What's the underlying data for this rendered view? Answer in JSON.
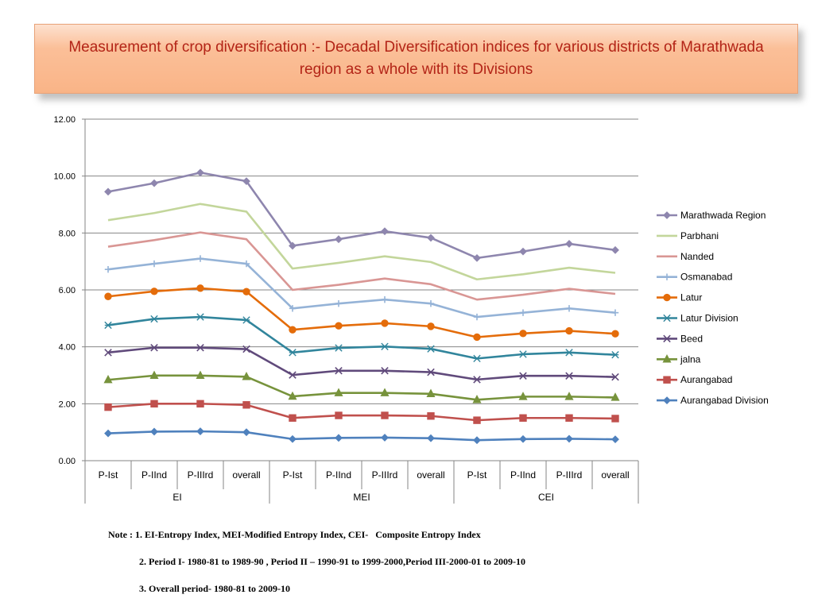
{
  "title": "Measurement of crop diversification :- Decadal Diversification indices for various districts of Marathwada region as a whole with its Divisions",
  "notes": [
    "Note : 1. EI-Entropy Index, MEI-Modified Entropy Index, CEI-   Composite Entropy Index",
    "2. Period I- 1980-81 to 1989-90 , Period II – 1990-91 to 1999-2000,Period III-2000-01 to 2009-10",
    "3. Overall period- 1980-81 to 2009-10"
  ],
  "chart_data": {
    "type": "line",
    "title": "",
    "xlabel": "",
    "ylabel": "",
    "ylim": [
      0,
      12
    ],
    "ytick_labels": [
      "0.00",
      "2.00",
      "4.00",
      "6.00",
      "8.00",
      "10.00",
      "12.00"
    ],
    "yticks": [
      0,
      2,
      4,
      6,
      8,
      10,
      12
    ],
    "grid": true,
    "legend_position": "right",
    "categories": [
      "P-Ist",
      "P-IInd",
      "P-IIIrd",
      "overall",
      "P-Ist",
      "P-IInd",
      "P-IIIrd",
      "overall",
      "P-Ist",
      "P-IInd",
      "P-IIIrd",
      "overall"
    ],
    "groups": [
      "EI",
      "MEI",
      "CEI"
    ],
    "series": [
      {
        "name": "Marathwada Region",
        "color": "#8e86ae",
        "marker": "diamond",
        "values": [
          9.45,
          9.75,
          10.12,
          9.82,
          7.55,
          7.78,
          8.06,
          7.83,
          7.12,
          7.35,
          7.62,
          7.4
        ]
      },
      {
        "name": "Parbhani",
        "color": "#c3d69b",
        "marker": "none",
        "values": [
          8.45,
          8.7,
          9.02,
          8.75,
          6.75,
          6.95,
          7.18,
          6.98,
          6.37,
          6.55,
          6.78,
          6.6
        ]
      },
      {
        "name": "Nanded",
        "color": "#d99694",
        "marker": "none",
        "values": [
          7.52,
          7.75,
          8.02,
          7.78,
          6.0,
          6.18,
          6.4,
          6.2,
          5.66,
          5.83,
          6.04,
          5.86
        ]
      },
      {
        "name": "Osmanabad",
        "color": "#95b3d7",
        "marker": "plus",
        "values": [
          6.72,
          6.92,
          7.1,
          6.92,
          5.35,
          5.52,
          5.66,
          5.52,
          5.05,
          5.2,
          5.35,
          5.2
        ]
      },
      {
        "name": "Latur",
        "color": "#e46c0a",
        "marker": "circle",
        "values": [
          5.77,
          5.95,
          6.06,
          5.94,
          4.6,
          4.74,
          4.83,
          4.72,
          4.34,
          4.47,
          4.56,
          4.46
        ]
      },
      {
        "name": "Latur Division",
        "color": "#31859c",
        "marker": "star",
        "values": [
          4.76,
          4.98,
          5.05,
          4.94,
          3.8,
          3.96,
          4.01,
          3.93,
          3.59,
          3.74,
          3.8,
          3.72
        ]
      },
      {
        "name": "Beed",
        "color": "#604a7b",
        "marker": "x",
        "values": [
          3.8,
          3.97,
          3.97,
          3.92,
          3.01,
          3.16,
          3.16,
          3.11,
          2.85,
          2.98,
          2.98,
          2.94
        ]
      },
      {
        "name": "jalna",
        "color": "#77933c",
        "marker": "triangle",
        "values": [
          2.84,
          2.99,
          2.99,
          2.95,
          2.26,
          2.38,
          2.38,
          2.35,
          2.14,
          2.25,
          2.25,
          2.22
        ]
      },
      {
        "name": "Aurangabad",
        "color": "#c0504d",
        "marker": "square",
        "values": [
          1.88,
          2.0,
          2.0,
          1.96,
          1.5,
          1.59,
          1.59,
          1.57,
          1.42,
          1.5,
          1.5,
          1.48
        ]
      },
      {
        "name": "Aurangabad Division",
        "color": "#4f81bd",
        "marker": "diamond",
        "values": [
          0.96,
          1.02,
          1.03,
          1.0,
          0.76,
          0.8,
          0.81,
          0.79,
          0.72,
          0.76,
          0.77,
          0.75
        ]
      }
    ]
  }
}
